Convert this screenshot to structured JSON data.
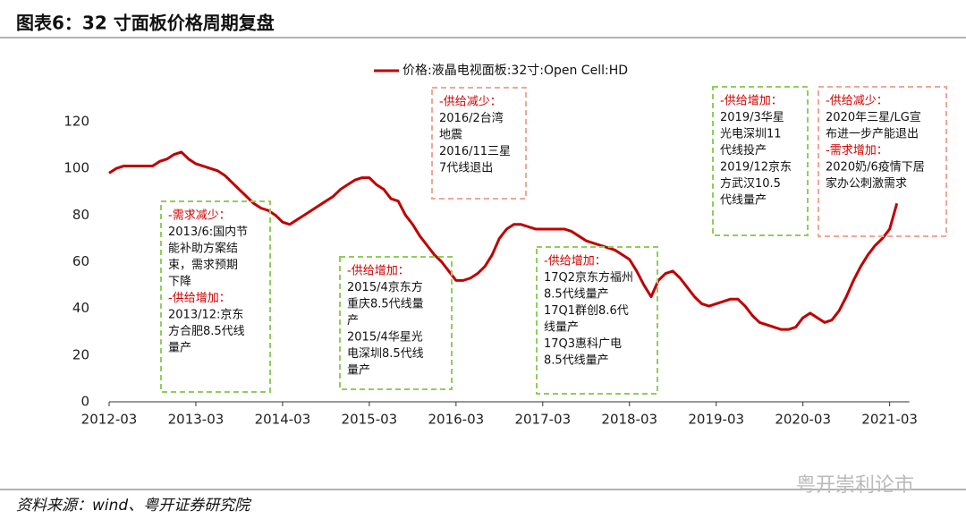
{
  "header": {
    "title": "图表6：32 寸面板价格周期复盘"
  },
  "chart_data": {
    "type": "line",
    "x": [
      "2012-03",
      "2012-04",
      "2012-05",
      "2012-06",
      "2012-07",
      "2012-08",
      "2012-09",
      "2012-10",
      "2012-11",
      "2012-12",
      "2013-01",
      "2013-02",
      "2013-03",
      "2013-04",
      "2013-05",
      "2013-06",
      "2013-07",
      "2013-08",
      "2013-09",
      "2013-10",
      "2013-11",
      "2013-12",
      "2014-01",
      "2014-02",
      "2014-03",
      "2014-04",
      "2014-05",
      "2014-06",
      "2014-07",
      "2014-08",
      "2014-09",
      "2014-10",
      "2014-11",
      "2014-12",
      "2015-01",
      "2015-02",
      "2015-03",
      "2015-04",
      "2015-05",
      "2015-06",
      "2015-07",
      "2015-08",
      "2015-09",
      "2015-10",
      "2015-11",
      "2015-12",
      "2016-01",
      "2016-02",
      "2016-03",
      "2016-04",
      "2016-05",
      "2016-06",
      "2016-07",
      "2016-08",
      "2016-09",
      "2016-10",
      "2016-11",
      "2016-12",
      "2017-01",
      "2017-02",
      "2017-03",
      "2017-04",
      "2017-05",
      "2017-06",
      "2017-07",
      "2017-08",
      "2017-09",
      "2017-10",
      "2017-11",
      "2017-12",
      "2018-01",
      "2018-02",
      "2018-03",
      "2018-04",
      "2018-05",
      "2018-06",
      "2018-07",
      "2018-08",
      "2018-09",
      "2018-10",
      "2018-11",
      "2018-12",
      "2019-01",
      "2019-02",
      "2019-03",
      "2019-04",
      "2019-05",
      "2019-06",
      "2019-07",
      "2019-08",
      "2019-09",
      "2019-10",
      "2019-11",
      "2019-12",
      "2020-01",
      "2020-02",
      "2020-03",
      "2020-04",
      "2020-05",
      "2020-06",
      "2020-07",
      "2020-08",
      "2020-09",
      "2020-10",
      "2020-11",
      "2020-12",
      "2021-01",
      "2021-02",
      "2021-03",
      "2021-04"
    ],
    "xticks": [
      "2012-03",
      "2013-03",
      "2014-03",
      "2015-03",
      "2016-03",
      "2017-03",
      "2018-03",
      "2019-03",
      "2020-03",
      "2021-03"
    ],
    "series": [
      {
        "name": "价格:液晶电视面板:32寸:Open Cell:HD",
        "color": "#c00000",
        "values": [
          98,
          100,
          101,
          101,
          101,
          101,
          101,
          103,
          104,
          106,
          107,
          104,
          102,
          101,
          100,
          99,
          97,
          94,
          91,
          88,
          85,
          83,
          82,
          80,
          77,
          76,
          78,
          80,
          82,
          84,
          86,
          88,
          91,
          93,
          95,
          96,
          96,
          93,
          91,
          87,
          86,
          80,
          76,
          71,
          67,
          63,
          60,
          56,
          52,
          52,
          53,
          55,
          58,
          63,
          70,
          74,
          76,
          76,
          75,
          74,
          74,
          74,
          74,
          74,
          73,
          71,
          69,
          68,
          67,
          66,
          65,
          63,
          61,
          56,
          50,
          45,
          52,
          55,
          56,
          53,
          49,
          45,
          42,
          41,
          42,
          43,
          44,
          44,
          41,
          37,
          34,
          33,
          32,
          31,
          31,
          32,
          36,
          38,
          36,
          34,
          35,
          39,
          45,
          52,
          58,
          63,
          67,
          70,
          74,
          85
        ]
      }
    ],
    "ylim": [
      0,
      120
    ],
    "yticks": [
      0,
      20,
      40,
      60,
      80,
      100,
      120
    ],
    "legend": "top",
    "annotations": [
      {
        "color": "#8fce5a",
        "lines": [
          "-需求减少：",
          "2013/6:国内节",
          "能补助方案结",
          "束，需求预期",
          "下降",
          "-供给增加：",
          "2013/12:京东",
          "方合肥8.5代线",
          "量产"
        ]
      },
      {
        "color": "#8fce5a",
        "lines": [
          "-供给增加：",
          "2015/4京东方",
          "重庆8.5代线量",
          "产",
          "2015/4华星光",
          "电深圳8.5代线",
          "量产"
        ]
      },
      {
        "color": "#f0a898",
        "lines": [
          "-供给减少：",
          "2016/2台湾",
          "地震",
          "2016/11三星",
          "7代线退出"
        ]
      },
      {
        "color": "#8fce5a",
        "lines": [
          "-供给增加：",
          "17Q2京东方福州",
          "8.5代线量产",
          "17Q1群创8.6代",
          "线量产",
          "17Q3惠科广电",
          "8.5代线量产"
        ]
      },
      {
        "color": "#8fce5a",
        "lines": [
          "-供给增加：",
          "2019/3华星",
          "光电深圳11",
          "代线投产",
          "2019/12京东",
          "方武汉10.5",
          "代线量产"
        ]
      },
      {
        "color": "#f0a898",
        "lines": [
          "-供给减少：",
          "2020年三星/LG宣",
          "布进一步产能退出",
          "-需求增加：",
          "2020奶/6疫情下居",
          "家办公刺激需求"
        ]
      }
    ]
  },
  "footer": {
    "source": "资料来源：wind、粤开证券研究院",
    "watermark": "粤开崇利论市"
  }
}
